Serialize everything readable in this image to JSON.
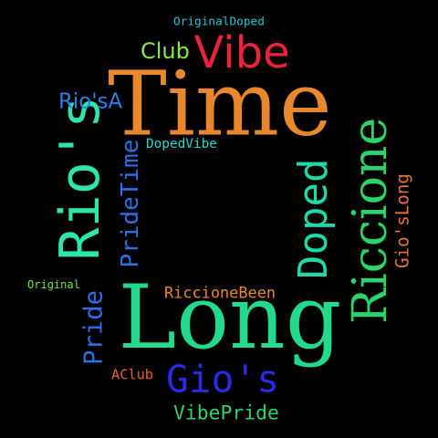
{
  "background": "#000000",
  "words": {
    "time": {
      "text": "Time",
      "color": "#e8872b"
    },
    "long": {
      "text": "Long",
      "color": "#22d98c"
    },
    "rios_big": {
      "text": "Rio's",
      "color": "#2ee6a8"
    },
    "riccione": {
      "text": "Riccione",
      "color": "#2bd46a"
    },
    "doped": {
      "text": "Doped",
      "color": "#1fd9a8"
    },
    "gios_big": {
      "text": "Gio's",
      "color": "#2a2ae6"
    },
    "vibe": {
      "text": "Vibe",
      "color": "#e8233a"
    },
    "pride": {
      "text": "Pride",
      "color": "#2b6fe6"
    },
    "pridetime": {
      "text": "PrideTime",
      "color": "#2b6fe6"
    },
    "riccionebeen": {
      "text": "RiccioneBeen",
      "color": "#e8872b"
    },
    "vibepride": {
      "text": "VibePride",
      "color": "#2bd46a"
    },
    "gios_long": {
      "text": "Gio'sLong",
      "color": "#e8703a"
    },
    "club": {
      "text": "Club",
      "color": "#8ce64a"
    },
    "rios_a": {
      "text": "Rio'sA",
      "color": "#2b7fe6"
    },
    "dopedvibe": {
      "text": "DopedVibe",
      "color": "#22d9d0"
    },
    "originaldoped": {
      "text": "OriginalDoped",
      "color": "#22c8d9"
    },
    "original": {
      "text": "Original",
      "color": "#6fe64a"
    },
    "aclub": {
      "text": "AClub",
      "color": "#e8602b"
    }
  }
}
